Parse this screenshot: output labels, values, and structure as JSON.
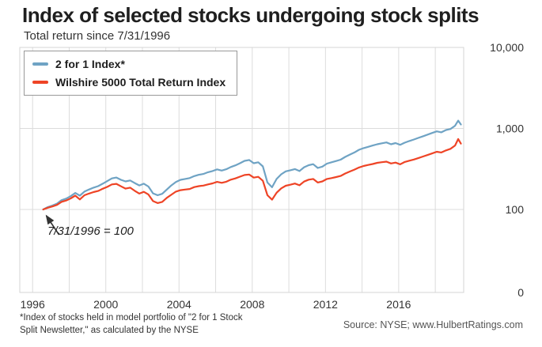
{
  "footer": {
    "footnote": "*Index of stocks held in model portfolio of \"2 for 1 Stock\nSplit Newsletter,\" as calculated by the NYSE",
    "source": "Source: NYSE; www.HulbertRatings.com"
  },
  "chart_data": {
    "type": "line",
    "title": "Index of selected stocks undergoing stock splits",
    "subtitle": "Total return since 7/31/1996",
    "xlabel": "",
    "ylabel": "",
    "y_scale": "log",
    "grid": true,
    "legend_position": "top-left",
    "annotation": "7/31/1996 = 100",
    "x_domain": [
      1995.3,
      2019.55
    ],
    "x_ticks": [
      {
        "label": "1996",
        "year": 1996
      },
      {
        "label": "2000",
        "year": 2000
      },
      {
        "label": "2004",
        "year": 2004
      },
      {
        "label": "2008",
        "year": 2008
      },
      {
        "label": "2012",
        "year": 2012
      },
      {
        "label": "2016",
        "year": 2016
      }
    ],
    "x_gridline_years": [
      1996,
      1998,
      2000,
      2002,
      2004,
      2006,
      2008,
      2010,
      2012,
      2014,
      2016,
      2018
    ],
    "y_ticks": [
      {
        "label": "10,000",
        "value": 10000
      },
      {
        "label": "1,000",
        "value": 1000
      },
      {
        "label": "100",
        "value": 100
      },
      {
        "label": "0",
        "value": null
      }
    ],
    "x": [
      1996.58,
      1996.83,
      1997.08,
      1997.33,
      1997.58,
      1997.83,
      1998.08,
      1998.33,
      1998.58,
      1998.83,
      1999.08,
      1999.33,
      1999.58,
      1999.83,
      2000.08,
      2000.33,
      2000.58,
      2000.83,
      2001.08,
      2001.33,
      2001.58,
      2001.83,
      2002.08,
      2002.33,
      2002.58,
      2002.83,
      2003.08,
      2003.33,
      2003.58,
      2003.83,
      2004.08,
      2004.33,
      2004.58,
      2004.83,
      2005.08,
      2005.33,
      2005.58,
      2005.83,
      2006.08,
      2006.33,
      2006.58,
      2006.83,
      2007.08,
      2007.33,
      2007.58,
      2007.83,
      2008.08,
      2008.33,
      2008.58,
      2008.83,
      2009.08,
      2009.33,
      2009.58,
      2009.83,
      2010.08,
      2010.33,
      2010.58,
      2010.83,
      2011.08,
      2011.33,
      2011.58,
      2011.83,
      2012.08,
      2012.33,
      2012.58,
      2012.83,
      2013.08,
      2013.33,
      2013.58,
      2013.83,
      2014.08,
      2014.33,
      2014.58,
      2014.83,
      2015.08,
      2015.33,
      2015.58,
      2015.83,
      2016.08,
      2016.33,
      2016.58,
      2016.83,
      2017.08,
      2017.33,
      2017.58,
      2017.83,
      2018.08,
      2018.33,
      2018.58,
      2018.83,
      2019.08,
      2019.25,
      2019.4
    ],
    "series": [
      {
        "name": "2 for 1 Index*",
        "color": "#6fa3c4",
        "values": [
          100,
          107,
          112,
          118,
          130,
          136,
          146,
          160,
          148,
          166,
          176,
          186,
          194,
          208,
          224,
          242,
          248,
          232,
          222,
          228,
          212,
          198,
          208,
          192,
          158,
          150,
          156,
          176,
          198,
          218,
          232,
          238,
          244,
          258,
          268,
          274,
          288,
          298,
          312,
          302,
          314,
          334,
          350,
          372,
          398,
          408,
          372,
          382,
          340,
          215,
          188,
          238,
          272,
          295,
          305,
          315,
          298,
          332,
          352,
          362,
          325,
          338,
          368,
          382,
          396,
          412,
          445,
          475,
          505,
          545,
          572,
          592,
          615,
          638,
          655,
          672,
          638,
          660,
          628,
          668,
          700,
          730,
          765,
          800,
          840,
          880,
          920,
          895,
          955,
          985,
          1080,
          1250,
          1120
        ]
      },
      {
        "name": "Wilshire 5000 Total Return Index",
        "color": "#ee4426",
        "values": [
          100,
          105,
          109,
          114,
          124,
          129,
          137,
          148,
          133,
          150,
          157,
          164,
          169,
          180,
          190,
          204,
          207,
          193,
          181,
          186,
          170,
          157,
          165,
          153,
          127,
          120,
          124,
          139,
          152,
          166,
          173,
          176,
          179,
          189,
          194,
          197,
          204,
          210,
          219,
          213,
          220,
          233,
          242,
          254,
          266,
          270,
          247,
          253,
          226,
          150,
          132,
          161,
          182,
          196,
          202,
          209,
          199,
          221,
          233,
          238,
          215,
          222,
          238,
          244,
          251,
          259,
          278,
          294,
          310,
          330,
          344,
          354,
          364,
          376,
          383,
          389,
          370,
          379,
          361,
          386,
          400,
          414,
          432,
          450,
          470,
          492,
          515,
          505,
          535,
          560,
          615,
          740,
          650
        ]
      }
    ]
  }
}
